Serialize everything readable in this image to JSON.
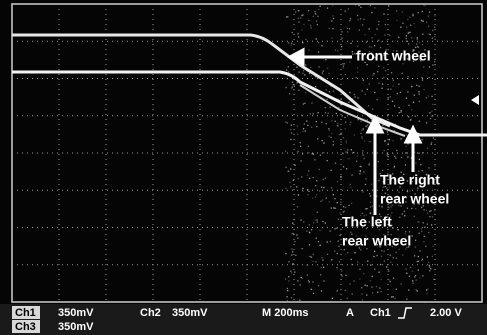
{
  "annotations": {
    "front": "front wheel",
    "right": [
      "The right",
      "rear wheel"
    ],
    "left": [
      "The left",
      "rear wheel"
    ]
  },
  "status_bar": {
    "row1": [
      "Ch1",
      "350mV",
      "Ch2",
      "350mV",
      "M 200ms",
      "A",
      "Ch1",
      "2.00 V"
    ],
    "row2": [
      "Ch3",
      "350mV"
    ]
  }
}
